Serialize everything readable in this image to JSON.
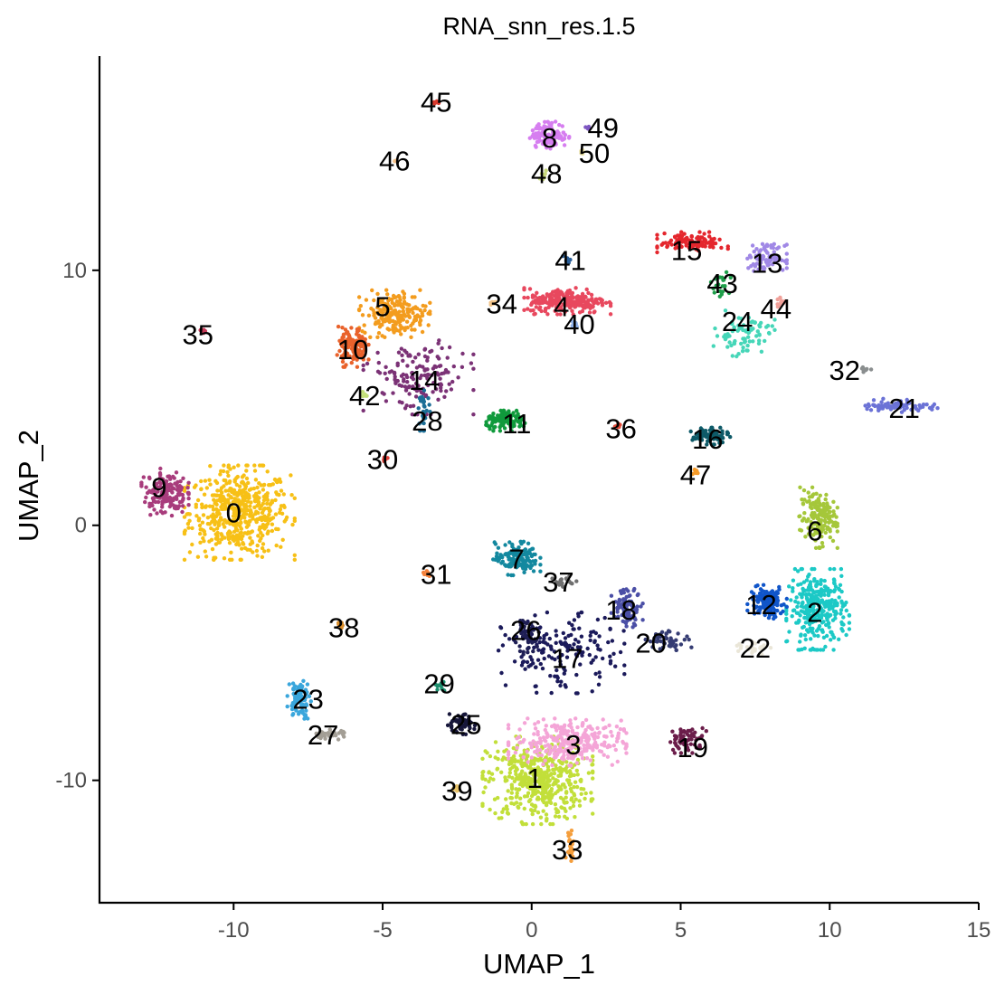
{
  "chart_data": {
    "type": "scatter",
    "title": "RNA_snn_res.1.5",
    "xlabel": "UMAP_1",
    "ylabel": "UMAP_2",
    "xlim": [
      -14.5,
      15
    ],
    "ylim": [
      -14.8,
      18.4
    ],
    "xticks": [
      -10,
      -5,
      0,
      5,
      10,
      15
    ],
    "yticks": [
      -10,
      0,
      10
    ],
    "grid": false,
    "legend": "none",
    "clusters": [
      {
        "id": "0",
        "x": -9.8,
        "y": 0.5,
        "color": "#F7C016",
        "spread": [
          1.4,
          1.4
        ],
        "n": 520
      },
      {
        "id": "1",
        "x": 0.2,
        "y": -10.0,
        "color": "#C2DF3A",
        "spread": [
          1.4,
          1.3
        ],
        "n": 480
      },
      {
        "id": "2",
        "x": 9.6,
        "y": -3.3,
        "color": "#1CC9C6",
        "spread": [
          0.8,
          1.2
        ],
        "n": 320
      },
      {
        "id": "3",
        "x": 1.2,
        "y": -8.5,
        "color": "#F4A5D7",
        "spread": [
          1.5,
          0.7
        ],
        "n": 300
      },
      {
        "id": "4",
        "x": 1.2,
        "y": 8.8,
        "color": "#E8485E",
        "spread": [
          1.1,
          0.4
        ],
        "n": 240
      },
      {
        "id": "5",
        "x": -4.6,
        "y": 8.3,
        "color": "#F39C1E",
        "spread": [
          0.9,
          0.7
        ],
        "n": 200
      },
      {
        "id": "6",
        "x": 9.6,
        "y": 0.3,
        "color": "#A5C73A",
        "spread": [
          0.5,
          0.9
        ],
        "n": 160
      },
      {
        "id": "7",
        "x": -0.5,
        "y": -1.3,
        "color": "#13889F",
        "spread": [
          0.6,
          0.5
        ],
        "n": 140
      },
      {
        "id": "8",
        "x": 0.6,
        "y": 15.3,
        "color": "#D67EF0",
        "spread": [
          0.5,
          0.4
        ],
        "n": 130
      },
      {
        "id": "9",
        "x": -12.3,
        "y": 1.3,
        "color": "#A83C7C",
        "spread": [
          0.6,
          0.7
        ],
        "n": 160
      },
      {
        "id": "10",
        "x": -6.0,
        "y": 7.0,
        "color": "#E9622B",
        "spread": [
          0.4,
          0.6
        ],
        "n": 120
      },
      {
        "id": "11",
        "x": -0.8,
        "y": 4.1,
        "color": "#109A3C",
        "spread": [
          0.6,
          0.3
        ],
        "n": 110
      },
      {
        "id": "12",
        "x": 7.9,
        "y": -3.0,
        "color": "#1055C9",
        "spread": [
          0.5,
          0.5
        ],
        "n": 140
      },
      {
        "id": "13",
        "x": 7.9,
        "y": 10.5,
        "color": "#A088E6",
        "spread": [
          0.5,
          0.4
        ],
        "n": 90
      },
      {
        "id": "14",
        "x": -3.8,
        "y": 5.8,
        "color": "#7B3276",
        "spread": [
          1.4,
          1.1
        ],
        "n": 150
      },
      {
        "id": "15",
        "x": 5.4,
        "y": 11.1,
        "color": "#E4262D",
        "spread": [
          0.9,
          0.3
        ],
        "n": 110
      },
      {
        "id": "16",
        "x": 6.0,
        "y": 3.5,
        "color": "#0E5A68",
        "spread": [
          0.5,
          0.25
        ],
        "n": 80
      },
      {
        "id": "17",
        "x": 1.0,
        "y": -5.0,
        "color": "#1B1A5A",
        "spread": [
          1.6,
          1.2
        ],
        "n": 170
      },
      {
        "id": "18",
        "x": 3.2,
        "y": -3.2,
        "color": "#4B4FA6",
        "spread": [
          0.4,
          0.6
        ],
        "n": 90
      },
      {
        "id": "19",
        "x": 5.2,
        "y": -8.4,
        "color": "#6B1D4A",
        "spread": [
          0.5,
          0.4
        ],
        "n": 60
      },
      {
        "id": "20",
        "x": 4.6,
        "y": -4.5,
        "color": "#353C73",
        "spread": [
          0.6,
          0.3
        ],
        "n": 50
      },
      {
        "id": "21",
        "x": 12.3,
        "y": 4.7,
        "color": "#6B72D6",
        "spread": [
          1.0,
          0.2
        ],
        "n": 70
      },
      {
        "id": "22",
        "x": 7.4,
        "y": -4.8,
        "color": "#EAE6D8",
        "spread": [
          0.5,
          0.2
        ],
        "n": 25
      },
      {
        "id": "23",
        "x": -7.8,
        "y": -6.8,
        "color": "#3AA6DC",
        "spread": [
          0.3,
          0.6
        ],
        "n": 80
      },
      {
        "id": "24",
        "x": 7.1,
        "y": 7.5,
        "color": "#46D6B8",
        "spread": [
          0.8,
          0.7
        ],
        "n": 80
      },
      {
        "id": "25",
        "x": -2.4,
        "y": -7.8,
        "color": "#16163A",
        "spread": [
          0.4,
          0.3
        ],
        "n": 60
      },
      {
        "id": "26",
        "x": -0.2,
        "y": -4.4,
        "color": "#1F1F55",
        "spread": [
          0.3,
          0.5
        ],
        "n": 50
      },
      {
        "id": "27",
        "x": -6.8,
        "y": -8.2,
        "color": "#A39E95",
        "spread": [
          0.5,
          0.15
        ],
        "n": 40
      },
      {
        "id": "28",
        "x": -3.6,
        "y": 4.5,
        "color": "#1C6E96",
        "spread": [
          0.15,
          0.6
        ],
        "n": 30
      },
      {
        "id": "29",
        "x": -3.1,
        "y": -6.3,
        "color": "#1E8F6E",
        "spread": [
          0.15,
          0.15
        ],
        "n": 12
      },
      {
        "id": "30",
        "x": -4.9,
        "y": 2.6,
        "color": "#E2453C",
        "spread": [
          0.1,
          0.1
        ],
        "n": 8
      },
      {
        "id": "31",
        "x": -3.5,
        "y": -1.9,
        "color": "#F4813A",
        "spread": [
          0.1,
          0.1
        ],
        "n": 8
      },
      {
        "id": "32",
        "x": 11.2,
        "y": 6.1,
        "color": "#8A8E8F",
        "spread": [
          0.15,
          0.08
        ],
        "n": 10
      },
      {
        "id": "33",
        "x": 1.3,
        "y": -12.5,
        "color": "#F59E3C",
        "spread": [
          0.12,
          0.5
        ],
        "n": 25
      },
      {
        "id": "34",
        "x": -1.3,
        "y": 8.7,
        "color": "#F2C48A",
        "spread": [
          0.12,
          0.1
        ],
        "n": 8
      },
      {
        "id": "35",
        "x": -11.0,
        "y": 7.6,
        "color": "#C63A58",
        "spread": [
          0.1,
          0.1
        ],
        "n": 8
      },
      {
        "id": "36",
        "x": 2.9,
        "y": 3.9,
        "color": "#E24B39",
        "spread": [
          0.1,
          0.1
        ],
        "n": 8
      },
      {
        "id": "37",
        "x": 1.1,
        "y": -2.2,
        "color": "#6F6F6F",
        "spread": [
          0.4,
          0.2
        ],
        "n": 20
      },
      {
        "id": "38",
        "x": -6.4,
        "y": -3.9,
        "color": "#D98D2A",
        "spread": [
          0.1,
          0.1
        ],
        "n": 8
      },
      {
        "id": "39",
        "x": -2.5,
        "y": -10.3,
        "color": "#E9C46A",
        "spread": [
          0.1,
          0.1
        ],
        "n": 8
      },
      {
        "id": "40",
        "x": 1.4,
        "y": 7.9,
        "color": "#8FB1E8",
        "spread": [
          0.1,
          0.1
        ],
        "n": 8
      },
      {
        "id": "41",
        "x": 1.2,
        "y": 10.4,
        "color": "#2A5F99",
        "spread": [
          0.12,
          0.12
        ],
        "n": 10
      },
      {
        "id": "42",
        "x": -5.6,
        "y": 5.1,
        "color": "#C3E07A",
        "spread": [
          0.1,
          0.1
        ],
        "n": 8
      },
      {
        "id": "43",
        "x": 6.3,
        "y": 9.5,
        "color": "#1E9F4A",
        "spread": [
          0.3,
          0.4
        ],
        "n": 20
      },
      {
        "id": "44",
        "x": 8.4,
        "y": 8.7,
        "color": "#F0A099",
        "spread": [
          0.15,
          0.25
        ],
        "n": 12
      },
      {
        "id": "45",
        "x": -3.2,
        "y": 16.6,
        "color": "#D93A2E",
        "spread": [
          0.08,
          0.06
        ],
        "n": 5
      },
      {
        "id": "46",
        "x": -4.6,
        "y": 14.3,
        "color": "#F6C28B",
        "spread": [
          0.06,
          0.06
        ],
        "n": 4
      },
      {
        "id": "47",
        "x": 5.5,
        "y": 2.1,
        "color": "#F59B2A",
        "spread": [
          0.1,
          0.1
        ],
        "n": 8
      },
      {
        "id": "48",
        "x": 0.4,
        "y": 13.7,
        "color": "#C8D87A",
        "spread": [
          0.1,
          0.2
        ],
        "n": 10
      },
      {
        "id": "49",
        "x": 1.9,
        "y": 15.6,
        "color": "#7E57C2",
        "spread": [
          0.08,
          0.08
        ],
        "n": 5
      },
      {
        "id": "50",
        "x": 1.7,
        "y": 14.6,
        "color": "#EFE5A8",
        "spread": [
          0.08,
          0.08
        ],
        "n": 5
      }
    ],
    "labels": [
      {
        "text": "0",
        "x": -10.0,
        "y": 0.5
      },
      {
        "text": "1",
        "x": 0.1,
        "y": -9.9
      },
      {
        "text": "2",
        "x": 9.5,
        "y": -3.4
      },
      {
        "text": "3",
        "x": 1.4,
        "y": -8.6
      },
      {
        "text": "4",
        "x": 1.0,
        "y": 8.6
      },
      {
        "text": "5",
        "x": -5.0,
        "y": 8.6
      },
      {
        "text": "6",
        "x": 9.5,
        "y": -0.2
      },
      {
        "text": "7",
        "x": -0.5,
        "y": -1.3
      },
      {
        "text": "8",
        "x": 0.6,
        "y": 15.2
      },
      {
        "text": "9",
        "x": -12.5,
        "y": 1.5
      },
      {
        "text": "10",
        "x": -6.0,
        "y": 6.9
      },
      {
        "text": "11",
        "x": -0.5,
        "y": 4.0
      },
      {
        "text": "12",
        "x": 7.7,
        "y": -3.1
      },
      {
        "text": "13",
        "x": 7.9,
        "y": 10.3
      },
      {
        "text": "14",
        "x": -3.6,
        "y": 5.7
      },
      {
        "text": "15",
        "x": 5.2,
        "y": 10.8
      },
      {
        "text": "16",
        "x": 5.9,
        "y": 3.4
      },
      {
        "text": "17",
        "x": 1.2,
        "y": -5.2
      },
      {
        "text": "18",
        "x": 3.0,
        "y": -3.3
      },
      {
        "text": "19",
        "x": 5.4,
        "y": -8.7
      },
      {
        "text": "20",
        "x": 4.0,
        "y": -4.6
      },
      {
        "text": "21",
        "x": 12.5,
        "y": 4.6
      },
      {
        "text": "22",
        "x": 7.5,
        "y": -4.8
      },
      {
        "text": "23",
        "x": -7.5,
        "y": -6.8
      },
      {
        "text": "24",
        "x": 6.9,
        "y": 8.0
      },
      {
        "text": "25",
        "x": -2.2,
        "y": -7.8
      },
      {
        "text": "26",
        "x": -0.2,
        "y": -4.1
      },
      {
        "text": "27",
        "x": -7.0,
        "y": -8.2
      },
      {
        "text": "28",
        "x": -3.5,
        "y": 4.1
      },
      {
        "text": "29",
        "x": -3.1,
        "y": -6.2
      },
      {
        "text": "30",
        "x": -5.0,
        "y": 2.6
      },
      {
        "text": "31",
        "x": -3.2,
        "y": -1.9
      },
      {
        "text": "32",
        "x": 10.5,
        "y": 6.1
      },
      {
        "text": "33",
        "x": 1.2,
        "y": -12.7
      },
      {
        "text": "34",
        "x": -1.0,
        "y": 8.7
      },
      {
        "text": "35",
        "x": -11.2,
        "y": 7.5
      },
      {
        "text": "36",
        "x": 3.0,
        "y": 3.8
      },
      {
        "text": "37",
        "x": 0.9,
        "y": -2.2
      },
      {
        "text": "38",
        "x": -6.3,
        "y": -4.0
      },
      {
        "text": "39",
        "x": -2.5,
        "y": -10.4
      },
      {
        "text": "40",
        "x": 1.6,
        "y": 7.9
      },
      {
        "text": "41",
        "x": 1.3,
        "y": 10.4
      },
      {
        "text": "42",
        "x": -5.6,
        "y": 5.1
      },
      {
        "text": "43",
        "x": 6.4,
        "y": 9.5
      },
      {
        "text": "44",
        "x": 8.2,
        "y": 8.5
      },
      {
        "text": "45",
        "x": -3.2,
        "y": 16.6
      },
      {
        "text": "46",
        "x": -4.6,
        "y": 14.3
      },
      {
        "text": "47",
        "x": 5.5,
        "y": 2.0
      },
      {
        "text": "48",
        "x": 0.5,
        "y": 13.8
      },
      {
        "text": "49",
        "x": 2.4,
        "y": 15.6
      },
      {
        "text": "50",
        "x": 2.1,
        "y": 14.6
      }
    ]
  }
}
